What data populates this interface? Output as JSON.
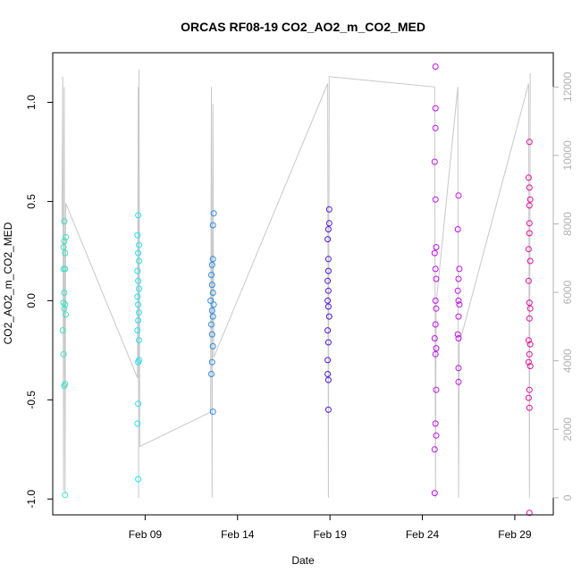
{
  "chart_data": {
    "type": "scatter",
    "title": "ORCAS RF08-19 CO2_AO2_m_CO2_MED",
    "xlabel": "Date",
    "ylabel": "CO2_AO2_m_CO2_MED",
    "x_range": [
      "2016-02-04T00:00",
      "2016-03-02T02:00"
    ],
    "ylim": [
      -1.08,
      1.25
    ],
    "y2lim": [
      -500,
      13000
    ],
    "x_ticks": [
      {
        "date": "2016-02-09",
        "label": "Feb 09"
      },
      {
        "date": "2016-02-14",
        "label": "Feb 14"
      },
      {
        "date": "2016-02-19",
        "label": "Feb 19"
      },
      {
        "date": "2016-02-24",
        "label": "Feb 24"
      },
      {
        "date": "2016-02-29",
        "label": "Feb 29"
      }
    ],
    "y_ticks": [
      {
        "value": -1.0,
        "label": "-1.0"
      },
      {
        "value": -0.5,
        "label": "-0.5"
      },
      {
        "value": 0.0,
        "label": "0.0"
      },
      {
        "value": 0.5,
        "label": "0.5"
      },
      {
        "value": 1.0,
        "label": "1.0"
      }
    ],
    "y2_ticks": [
      {
        "value": 0,
        "label": "0"
      },
      {
        "value": 2000,
        "label": "2000"
      },
      {
        "value": 4000,
        "label": "4000"
      },
      {
        "value": 6000,
        "label": "6000"
      },
      {
        "value": 8000,
        "label": "8000"
      },
      {
        "value": 10000,
        "label": "10000"
      },
      {
        "value": 12000,
        "label": "12000"
      }
    ],
    "grid": false,
    "point_marker": "open-circle",
    "altitude_line_color": "#c8c8c8",
    "series": [
      {
        "color": "#40e0c0",
        "points": [
          {
            "x": "2016-02-04T15:00",
            "y": 0.4
          },
          {
            "x": "2016-02-04T15:00",
            "y": 0.3
          },
          {
            "x": "2016-02-04T14:00",
            "y": 0.27
          },
          {
            "x": "2016-02-04T16:00",
            "y": 0.24
          },
          {
            "x": "2016-02-04T14:00",
            "y": 0.16
          },
          {
            "x": "2016-02-04T16:00",
            "y": 0.16
          },
          {
            "x": "2016-02-04T15:00",
            "y": 0.04
          },
          {
            "x": "2016-02-04T14:00",
            "y": -0.01
          },
          {
            "x": "2016-02-04T16:00",
            "y": -0.02
          },
          {
            "x": "2016-02-04T15:00",
            "y": -0.04
          },
          {
            "x": "2016-02-04T17:00",
            "y": -0.07
          },
          {
            "x": "2016-02-04T13:00",
            "y": -0.15
          },
          {
            "x": "2016-02-04T14:00",
            "y": -0.27
          },
          {
            "x": "2016-02-04T15:00",
            "y": -0.43
          },
          {
            "x": "2016-02-04T16:00",
            "y": -0.42
          },
          {
            "x": "2016-02-04T16:00",
            "y": -0.98
          },
          {
            "x": "2016-02-04T17:00",
            "y": 0.32
          }
        ]
      },
      {
        "color": "#20e4f4",
        "points": [
          {
            "x": "2016-02-08T15:00",
            "y": 0.43
          },
          {
            "x": "2016-02-08T14:00",
            "y": 0.33
          },
          {
            "x": "2016-02-08T16:00",
            "y": 0.28
          },
          {
            "x": "2016-02-08T15:00",
            "y": 0.24
          },
          {
            "x": "2016-02-08T16:00",
            "y": 0.2
          },
          {
            "x": "2016-02-08T14:00",
            "y": 0.15
          },
          {
            "x": "2016-02-08T15:00",
            "y": 0.1
          },
          {
            "x": "2016-02-08T16:00",
            "y": 0.06
          },
          {
            "x": "2016-02-08T14:00",
            "y": 0.02
          },
          {
            "x": "2016-02-08T15:00",
            "y": -0.02
          },
          {
            "x": "2016-02-08T16:00",
            "y": -0.06
          },
          {
            "x": "2016-02-08T15:00",
            "y": -0.1
          },
          {
            "x": "2016-02-08T14:00",
            "y": -0.15
          },
          {
            "x": "2016-02-08T16:00",
            "y": -0.2
          },
          {
            "x": "2016-02-08T15:00",
            "y": -0.31
          },
          {
            "x": "2016-02-08T16:00",
            "y": -0.3
          },
          {
            "x": "2016-02-08T15:00",
            "y": -0.52
          },
          {
            "x": "2016-02-08T14:00",
            "y": -0.62
          },
          {
            "x": "2016-02-08T15:00",
            "y": -0.9
          }
        ]
      },
      {
        "color": "#2a8ce8",
        "points": [
          {
            "x": "2016-02-12T17:00",
            "y": 0.44
          },
          {
            "x": "2016-02-12T16:00",
            "y": 0.38
          },
          {
            "x": "2016-02-12T16:00",
            "y": 0.21
          },
          {
            "x": "2016-02-12T15:00",
            "y": 0.18
          },
          {
            "x": "2016-02-12T14:00",
            "y": 0.13
          },
          {
            "x": "2016-02-12T15:00",
            "y": 0.08
          },
          {
            "x": "2016-02-12T16:00",
            "y": 0.04
          },
          {
            "x": "2016-02-12T13:00",
            "y": 0.0
          },
          {
            "x": "2016-02-12T17:00",
            "y": -0.02
          },
          {
            "x": "2016-02-12T15:00",
            "y": -0.05
          },
          {
            "x": "2016-02-12T16:00",
            "y": -0.08
          },
          {
            "x": "2016-02-12T14:00",
            "y": -0.12
          },
          {
            "x": "2016-02-12T15:00",
            "y": -0.17
          },
          {
            "x": "2016-02-12T16:00",
            "y": -0.23
          },
          {
            "x": "2016-02-12T15:00",
            "y": -0.31
          },
          {
            "x": "2016-02-12T14:00",
            "y": -0.37
          },
          {
            "x": "2016-02-12T16:00",
            "y": -0.56
          }
        ]
      },
      {
        "color": "#5018d8",
        "points": [
          {
            "x": "2016-02-18T23:00",
            "y": 0.46
          },
          {
            "x": "2016-02-18T23:00",
            "y": 0.39
          },
          {
            "x": "2016-02-18T22:00",
            "y": 0.36
          },
          {
            "x": "2016-02-18T21:00",
            "y": 0.31
          },
          {
            "x": "2016-02-18T22:00",
            "y": 0.21
          },
          {
            "x": "2016-02-18T22:00",
            "y": 0.15
          },
          {
            "x": "2016-02-18T21:00",
            "y": 0.1
          },
          {
            "x": "2016-02-18T22:00",
            "y": 0.05
          },
          {
            "x": "2016-02-18T21:00",
            "y": 0.0
          },
          {
            "x": "2016-02-18T22:00",
            "y": -0.03
          },
          {
            "x": "2016-02-18T23:00",
            "y": -0.08
          },
          {
            "x": "2016-02-18T21:00",
            "y": -0.15
          },
          {
            "x": "2016-02-18T22:00",
            "y": -0.21
          },
          {
            "x": "2016-02-18T21:00",
            "y": -0.3
          },
          {
            "x": "2016-02-18T21:00",
            "y": -0.37
          },
          {
            "x": "2016-02-18T22:00",
            "y": -0.4
          },
          {
            "x": "2016-02-18T22:00",
            "y": -0.55
          }
        ]
      },
      {
        "color": "#c010e8",
        "points": [
          {
            "x": "2016-02-24T17:00",
            "y": 1.18
          },
          {
            "x": "2016-02-24T17:00",
            "y": 0.97
          },
          {
            "x": "2016-02-24T17:00",
            "y": 0.87
          },
          {
            "x": "2016-02-24T16:00",
            "y": 0.7
          },
          {
            "x": "2016-02-24T17:00",
            "y": 0.51
          },
          {
            "x": "2016-02-24T18:00",
            "y": 0.27
          },
          {
            "x": "2016-02-24T16:00",
            "y": 0.24
          },
          {
            "x": "2016-02-24T17:00",
            "y": 0.16
          },
          {
            "x": "2016-02-24T18:00",
            "y": 0.11
          },
          {
            "x": "2016-02-24T17:00",
            "y": 0.0
          },
          {
            "x": "2016-02-24T18:00",
            "y": -0.04
          },
          {
            "x": "2016-02-24T17:00",
            "y": -0.12
          },
          {
            "x": "2016-02-24T16:00",
            "y": -0.19
          },
          {
            "x": "2016-02-24T18:00",
            "y": -0.24
          },
          {
            "x": "2016-02-24T17:00",
            "y": -0.27
          },
          {
            "x": "2016-02-24T18:00",
            "y": -0.45
          },
          {
            "x": "2016-02-24T17:00",
            "y": -0.62
          },
          {
            "x": "2016-02-24T18:00",
            "y": -0.68
          },
          {
            "x": "2016-02-24T16:00",
            "y": -0.75
          },
          {
            "x": "2016-02-24T16:00",
            "y": -0.97
          },
          {
            "x": "2016-02-25T23:00",
            "y": 0.53
          },
          {
            "x": "2016-02-25T22:00",
            "y": 0.36
          },
          {
            "x": "2016-02-26T00:00",
            "y": 0.16
          },
          {
            "x": "2016-02-25T23:00",
            "y": 0.11
          },
          {
            "x": "2016-02-25T22:00",
            "y": 0.05
          },
          {
            "x": "2016-02-25T23:00",
            "y": 0.0
          },
          {
            "x": "2016-02-26T00:00",
            "y": -0.02
          },
          {
            "x": "2016-02-25T23:00",
            "y": -0.08
          },
          {
            "x": "2016-02-25T22:00",
            "y": -0.17
          },
          {
            "x": "2016-02-25T23:00",
            "y": -0.19
          },
          {
            "x": "2016-02-25T23:00",
            "y": -0.34
          },
          {
            "x": "2016-02-25T23:00",
            "y": -0.41
          }
        ]
      },
      {
        "color": "#e0109c",
        "points": [
          {
            "x": "2016-02-29T19:00",
            "y": 0.8
          },
          {
            "x": "2016-02-29T18:00",
            "y": 0.62
          },
          {
            "x": "2016-02-29T19:00",
            "y": 0.57
          },
          {
            "x": "2016-02-29T20:00",
            "y": 0.51
          },
          {
            "x": "2016-02-29T19:00",
            "y": 0.48
          },
          {
            "x": "2016-02-29T19:00",
            "y": 0.39
          },
          {
            "x": "2016-02-29T19:00",
            "y": 0.34
          },
          {
            "x": "2016-02-29T18:00",
            "y": 0.26
          },
          {
            "x": "2016-02-29T20:00",
            "y": 0.2
          },
          {
            "x": "2016-02-29T18:00",
            "y": 0.1
          },
          {
            "x": "2016-02-29T19:00",
            "y": -0.01
          },
          {
            "x": "2016-02-29T20:00",
            "y": -0.04
          },
          {
            "x": "2016-02-29T19:00",
            "y": -0.09
          },
          {
            "x": "2016-02-29T18:00",
            "y": -0.2
          },
          {
            "x": "2016-02-29T20:00",
            "y": -0.22
          },
          {
            "x": "2016-02-29T19:00",
            "y": -0.27
          },
          {
            "x": "2016-02-29T18:00",
            "y": -0.31
          },
          {
            "x": "2016-02-29T20:00",
            "y": -0.33
          },
          {
            "x": "2016-02-29T19:00",
            "y": -0.45
          },
          {
            "x": "2016-02-29T18:00",
            "y": -0.49
          },
          {
            "x": "2016-02-29T19:00",
            "y": -0.54
          },
          {
            "x": "2016-02-29T19:00",
            "y": -1.07
          }
        ]
      }
    ],
    "altitude_track": [
      {
        "x": "2016-02-04T12:00",
        "alt": 8000
      },
      {
        "x": "2016-02-04T13:00",
        "alt": 12300
      },
      {
        "x": "2016-02-04T14:00",
        "alt": 200
      },
      {
        "x": "2016-02-04T15:00",
        "alt": 12000
      },
      {
        "x": "2016-02-04T16:00",
        "alt": 100
      },
      {
        "x": "2016-02-04T17:00",
        "alt": 8600
      },
      {
        "x": "2016-02-08T14:00",
        "alt": 3500
      },
      {
        "x": "2016-02-08T15:00",
        "alt": 12000
      },
      {
        "x": "2016-02-08T15:30",
        "alt": 0
      },
      {
        "x": "2016-02-08T16:00",
        "alt": 12500
      },
      {
        "x": "2016-02-08T17:00",
        "alt": 1500
      },
      {
        "x": "2016-02-12T13:00",
        "alt": 2500
      },
      {
        "x": "2016-02-12T14:00",
        "alt": 12000
      },
      {
        "x": "2016-02-12T15:00",
        "alt": 0
      },
      {
        "x": "2016-02-12T16:00",
        "alt": 11500
      },
      {
        "x": "2016-02-12T17:00",
        "alt": 4100
      },
      {
        "x": "2016-02-18T21:00",
        "alt": 12100
      },
      {
        "x": "2016-02-18T22:00",
        "alt": 0
      },
      {
        "x": "2016-02-18T23:00",
        "alt": 12300
      },
      {
        "x": "2016-02-24T16:00",
        "alt": 12000
      },
      {
        "x": "2016-02-24T17:00",
        "alt": 0
      },
      {
        "x": "2016-02-24T18:00",
        "alt": 5700
      },
      {
        "x": "2016-02-25T22:00",
        "alt": 12000
      },
      {
        "x": "2016-02-25T23:00",
        "alt": 0
      },
      {
        "x": "2016-02-26T00:00",
        "alt": 4500
      },
      {
        "x": "2016-02-29T18:00",
        "alt": 12100
      },
      {
        "x": "2016-02-29T19:00",
        "alt": 0
      },
      {
        "x": "2016-02-29T20:00",
        "alt": 12400
      }
    ]
  }
}
